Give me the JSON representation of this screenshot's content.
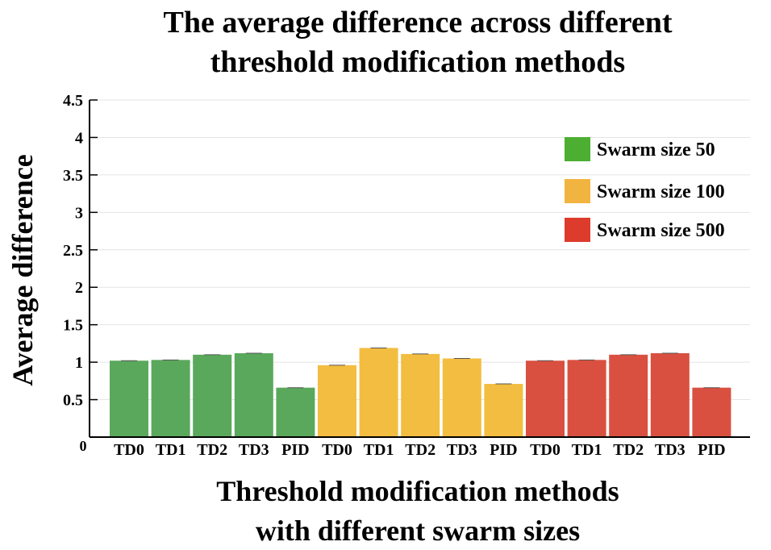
{
  "chart_data": {
    "type": "bar",
    "title_line1": "The average difference across different",
    "title_line2": "threshold modification methods",
    "xlabel_line1": "Threshold modification methods",
    "xlabel_line2": "with different swarm sizes",
    "ylabel": "Average difference",
    "ylim": [
      0,
      4.5
    ],
    "y_ticks": [
      "0.5",
      "1",
      "1.5",
      "2",
      "2.5",
      "3",
      "3.5",
      "4",
      "4.5"
    ],
    "y_tick_values": [
      0.5,
      1,
      1.5,
      2,
      2.5,
      3,
      3.5,
      4,
      4.5
    ],
    "origin_label": "0",
    "grid": true,
    "legend_position": "top-right",
    "series": [
      {
        "name": "Swarm size 50",
        "color": "#5aa85c",
        "legend_color": "#4caf32",
        "categories": [
          "TD0",
          "TD1",
          "TD2",
          "TD3",
          "PID"
        ],
        "values": [
          1.02,
          1.03,
          1.1,
          1.12,
          0.66
        ]
      },
      {
        "name": "Swarm size 100",
        "color": "#f2bd40",
        "legend_color": "#f2b440",
        "categories": [
          "TD0",
          "TD1",
          "TD2",
          "TD3",
          "PID"
        ],
        "values": [
          0.96,
          1.19,
          1.11,
          1.05,
          0.71
        ]
      },
      {
        "name": "Swarm size 500",
        "color": "#d95040",
        "legend_color": "#dd3c2c",
        "categories": [
          "TD0",
          "TD1",
          "TD2",
          "TD3",
          "PID"
        ],
        "values": [
          1.02,
          1.03,
          1.1,
          1.12,
          0.66
        ]
      }
    ]
  }
}
